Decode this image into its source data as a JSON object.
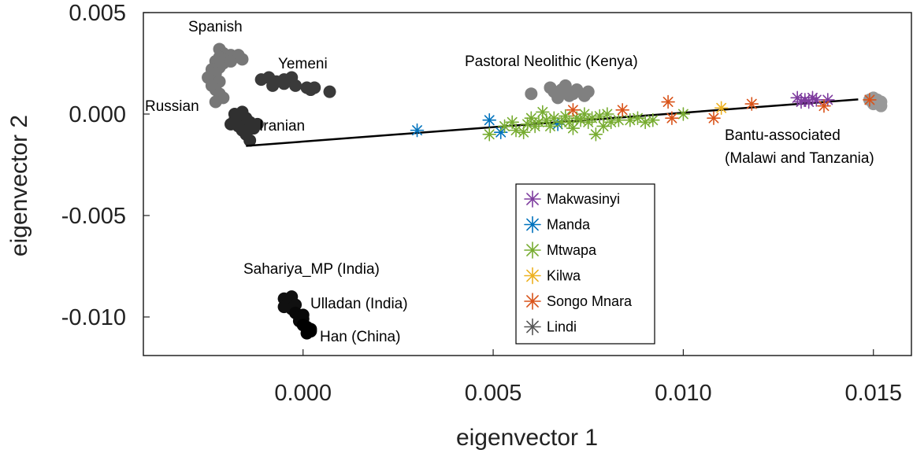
{
  "chart_data": {
    "type": "scatter",
    "xlabel": "eigenvector 1",
    "ylabel": "eigenvector 2",
    "xlim": [
      -0.0042,
      0.016
    ],
    "ylim": [
      -0.0119,
      0.005
    ],
    "x_ticks": [
      {
        "value": 0.0,
        "label": "0.000"
      },
      {
        "value": 0.005,
        "label": "0.005"
      },
      {
        "value": 0.01,
        "label": "0.010"
      },
      {
        "value": 0.015,
        "label": "0.015"
      }
    ],
    "y_ticks": [
      {
        "value": 0.005,
        "label": "0.005"
      },
      {
        "value": 0.0,
        "label": "0.000"
      },
      {
        "value": -0.005,
        "label": "-0.005"
      },
      {
        "value": -0.01,
        "label": "-0.010"
      }
    ],
    "grid": false,
    "legend_position": "bottom-center",
    "reference_line": {
      "x1": -0.0015,
      "y1": -0.00157,
      "x2": 0.0146,
      "y2": 0.00072,
      "color": "#000000"
    },
    "reference_populations": [
      {
        "name": "Spanish",
        "color": "#777777",
        "points": [
          [
            -0.0022,
            0.0032
          ],
          [
            -0.0021,
            0.003
          ],
          [
            -0.0019,
            0.0029
          ],
          [
            -0.0017,
            0.0029
          ],
          [
            -0.0022,
            0.0028
          ],
          [
            -0.002,
            0.0027
          ],
          [
            -0.0018,
            0.0028
          ],
          [
            -0.0021,
            0.0025
          ],
          [
            -0.0023,
            0.0026
          ],
          [
            -0.0019,
            0.0026
          ],
          [
            -0.0016,
            0.0027
          ],
          [
            -0.0022,
            0.0023
          ]
        ]
      },
      {
        "name": "Russian",
        "color": "#777777",
        "points": [
          [
            -0.0024,
            0.0022
          ],
          [
            -0.0023,
            0.002
          ],
          [
            -0.0025,
            0.0018
          ],
          [
            -0.0022,
            0.0016
          ],
          [
            -0.0024,
            0.0014
          ],
          [
            -0.0023,
            0.0012
          ],
          [
            -0.0022,
            0.001
          ],
          [
            -0.0021,
            0.0008
          ],
          [
            -0.0023,
            0.0006
          ]
        ]
      },
      {
        "name": "Yemeni",
        "color": "#3a3a3a",
        "points": [
          [
            -0.0011,
            0.0017
          ],
          [
            -0.0009,
            0.0018
          ],
          [
            -0.0007,
            0.0016
          ],
          [
            -0.0005,
            0.0017
          ],
          [
            -0.0003,
            0.0018
          ],
          [
            -0.0005,
            0.0015
          ],
          [
            -0.0002,
            0.0014
          ],
          [
            0.0001,
            0.0013
          ],
          [
            0.0002,
            0.0012
          ],
          [
            0.0003,
            0.0013
          ],
          [
            0.0007,
            0.0011
          ],
          [
            -0.0008,
            0.0014
          ]
        ]
      },
      {
        "name": "Iranian",
        "color": "#303030",
        "points": [
          [
            -0.0018,
            0.0
          ],
          [
            -0.0016,
            0.0001
          ],
          [
            -0.0015,
            -0.0002
          ],
          [
            -0.0018,
            -0.0003
          ],
          [
            -0.0014,
            -0.0004
          ],
          [
            -0.0017,
            -0.0006
          ],
          [
            -0.0016,
            -0.0008
          ],
          [
            -0.0013,
            -0.0007
          ],
          [
            -0.0019,
            -0.0005
          ],
          [
            -0.0015,
            -0.001
          ],
          [
            -0.0014,
            -0.0013
          ],
          [
            -0.0012,
            -0.0005
          ]
        ]
      },
      {
        "name": "Pastoral Neolithic (Kenya)",
        "color": "#808080",
        "points": [
          [
            0.006,
            0.001
          ],
          [
            0.0065,
            0.0013
          ],
          [
            0.0066,
            0.0011
          ],
          [
            0.0068,
            0.0012
          ],
          [
            0.007,
            0.0009
          ],
          [
            0.0071,
            0.001
          ],
          [
            0.0072,
            0.0012
          ],
          [
            0.0074,
            0.0009
          ],
          [
            0.0075,
            0.0011
          ],
          [
            0.0067,
            0.0008
          ],
          [
            0.0069,
            0.0014
          ]
        ]
      },
      {
        "name": "Bantu-associated (Malawi and Tanzania)",
        "color": "#999999",
        "points": [
          [
            0.0149,
            0.0007
          ],
          [
            0.015,
            0.0005
          ],
          [
            0.0151,
            0.0006
          ],
          [
            0.0152,
            0.0004
          ],
          [
            0.015,
            0.0008
          ],
          [
            0.0151,
            0.0007
          ],
          [
            0.0152,
            0.0006
          ]
        ]
      },
      {
        "name": "Sahariya_MP (India)",
        "color": "#101010",
        "points": [
          [
            -0.0005,
            -0.0091
          ],
          [
            -0.0004,
            -0.0093
          ],
          [
            -0.0003,
            -0.009
          ],
          [
            -0.0005,
            -0.0095
          ],
          [
            -0.0003,
            -0.0096
          ],
          [
            -0.0002,
            -0.0094
          ]
        ]
      },
      {
        "name": "Ulladan (India)",
        "color": "#080808",
        "points": [
          [
            -0.0002,
            -0.0098
          ],
          [
            -0.0001,
            -0.01
          ],
          [
            0.0,
            -0.0099
          ],
          [
            -0.0001,
            -0.0102
          ],
          [
            0.0,
            -0.0101
          ]
        ]
      },
      {
        "name": "Han (China)",
        "color": "#000000",
        "points": [
          [
            0.0,
            -0.0104
          ],
          [
            0.0001,
            -0.0105
          ],
          [
            0.0002,
            -0.0106
          ],
          [
            0.0001,
            -0.0108
          ],
          [
            0.0002,
            -0.0107
          ]
        ]
      }
    ],
    "label_positions_note": "",
    "series": [
      {
        "name": "Makwasinyi",
        "color": "#7e3c9e",
        "points": [
          [
            0.013,
            0.0008
          ],
          [
            0.0131,
            0.0006
          ],
          [
            0.0132,
            0.0007
          ],
          [
            0.0133,
            0.0006
          ],
          [
            0.0134,
            0.0008
          ],
          [
            0.0135,
            0.0007
          ],
          [
            0.0138,
            0.0007
          ]
        ]
      },
      {
        "name": "Manda",
        "color": "#0072bd",
        "points": [
          [
            0.003,
            -0.0008
          ],
          [
            0.0049,
            -0.0003
          ],
          [
            0.0052,
            -0.0009
          ],
          [
            0.0067,
            -0.0005
          ]
        ]
      },
      {
        "name": "Mtwapa",
        "color": "#77ac30",
        "points": [
          [
            0.0049,
            -0.001
          ],
          [
            0.0053,
            -0.0006
          ],
          [
            0.0055,
            -0.0004
          ],
          [
            0.0056,
            -0.0008
          ],
          [
            0.0058,
            -0.0009
          ],
          [
            0.0059,
            -0.0005
          ],
          [
            0.006,
            -0.0002
          ],
          [
            0.0061,
            -0.0006
          ],
          [
            0.0062,
            -0.0004
          ],
          [
            0.0063,
            0.0001
          ],
          [
            0.0064,
            -0.0003
          ],
          [
            0.0065,
            -0.0006
          ],
          [
            0.0066,
            -0.0002
          ],
          [
            0.0068,
            -0.0004
          ],
          [
            0.0069,
            -0.0001
          ],
          [
            0.007,
            -0.0004
          ],
          [
            0.0071,
            -0.0007
          ],
          [
            0.0072,
            -0.0002
          ],
          [
            0.0073,
            -0.0003
          ],
          [
            0.0074,
            0.0
          ],
          [
            0.0075,
            -0.0004
          ],
          [
            0.0076,
            -0.0002
          ],
          [
            0.0077,
            -0.001
          ],
          [
            0.0078,
            -0.0001
          ],
          [
            0.0079,
            -0.0006
          ],
          [
            0.008,
            0.0
          ],
          [
            0.0081,
            -0.0004
          ],
          [
            0.0083,
            -0.0003
          ],
          [
            0.0086,
            -0.0003
          ],
          [
            0.0088,
            -0.0002
          ],
          [
            0.009,
            -0.0004
          ],
          [
            0.0092,
            -0.0003
          ],
          [
            0.01,
            0.0
          ]
        ]
      },
      {
        "name": "Kilwa",
        "color": "#edb120",
        "points": [
          [
            0.011,
            0.0003
          ]
        ]
      },
      {
        "name": "Songo Mnara",
        "color": "#d95319",
        "points": [
          [
            0.0071,
            0.0002
          ],
          [
            0.0084,
            0.0002
          ],
          [
            0.0096,
            0.0006
          ],
          [
            0.0097,
            -0.0002
          ],
          [
            0.0108,
            -0.0002
          ],
          [
            0.0118,
            0.0005
          ],
          [
            0.0137,
            0.0004
          ],
          [
            0.0149,
            0.0007
          ]
        ]
      },
      {
        "name": "Lindi",
        "color": "#555555",
        "points": []
      }
    ]
  },
  "labels": {
    "spanish": "Spanish",
    "yemeni": "Yemeni",
    "russian": "Russian",
    "iranian": "Iranian",
    "pastoral": "Pastoral Neolithic (Kenya)",
    "bantu_line1": "Bantu-associated",
    "bantu_line2": "(Malawi and Tanzania)",
    "sahariya": "Sahariya_MP (India)",
    "ulladan": "Ulladan (India)",
    "han": "Han (China)"
  }
}
